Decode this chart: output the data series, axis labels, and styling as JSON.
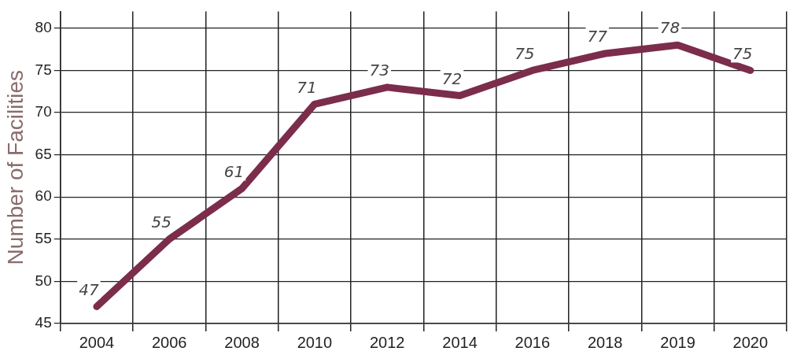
{
  "chart_data": {
    "type": "line",
    "ylabel": "Number of Facilities",
    "categories": [
      "2004",
      "2006",
      "2008",
      "2010",
      "2012",
      "2014",
      "2016",
      "2018",
      "2019",
      "2020"
    ],
    "series": [
      {
        "color": "#7b2d4b",
        "values": [
          47,
          55,
          61,
          71,
          73,
          72,
          75,
          77,
          78,
          75
        ]
      }
    ],
    "ylim": [
      45,
      82
    ],
    "yticks": [
      45,
      50,
      55,
      60,
      65,
      70,
      75,
      80
    ],
    "grid": true,
    "legend": false,
    "marker": "none",
    "line_style": "solid",
    "data_labels": true
  }
}
